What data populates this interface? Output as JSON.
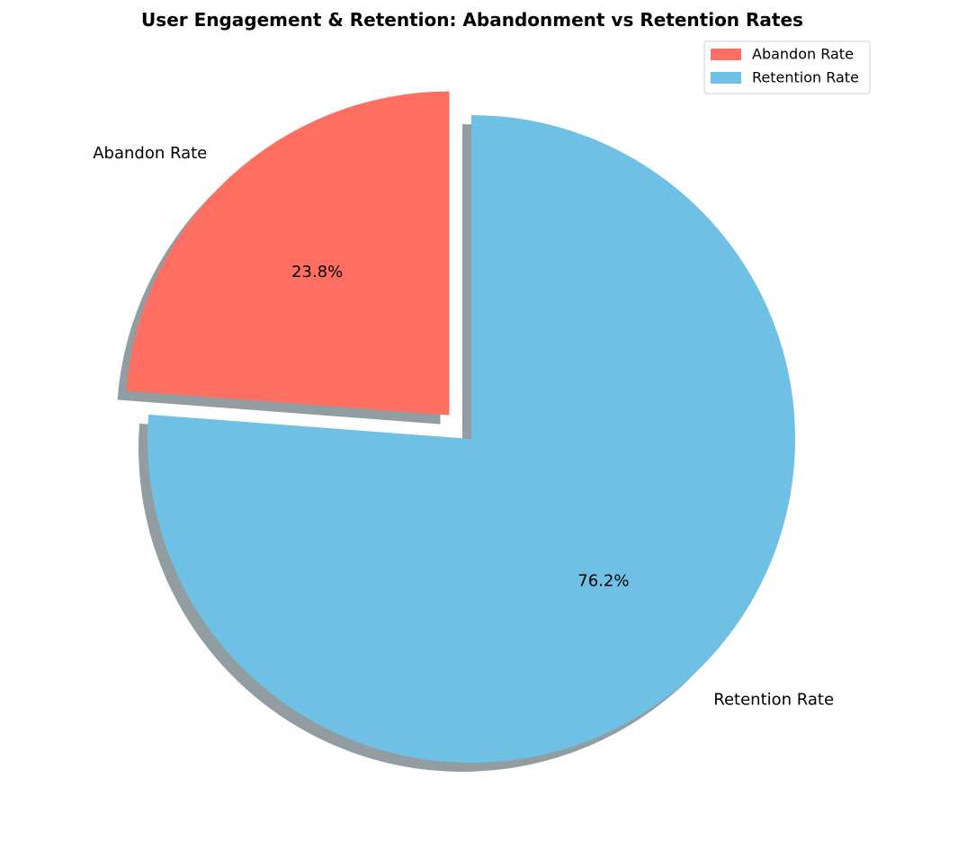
{
  "chart_data": {
    "type": "pie",
    "title": "User Engagement & Retention: Abandonment vs Retention Rates",
    "slices": [
      {
        "label": "Abandon Rate",
        "value": 23.8,
        "pct_label": "23.8%",
        "color": "#FF6F61",
        "exploded": true
      },
      {
        "label": "Retention Rate",
        "value": 76.2,
        "pct_label": "76.2%",
        "color": "#6EC0E4",
        "exploded": false
      }
    ],
    "start_angle_deg": 90,
    "direction": "counterclockwise",
    "shadow": true,
    "legend": {
      "placement": "top-right",
      "entries": [
        "Abandon Rate",
        "Retention Rate"
      ]
    }
  }
}
